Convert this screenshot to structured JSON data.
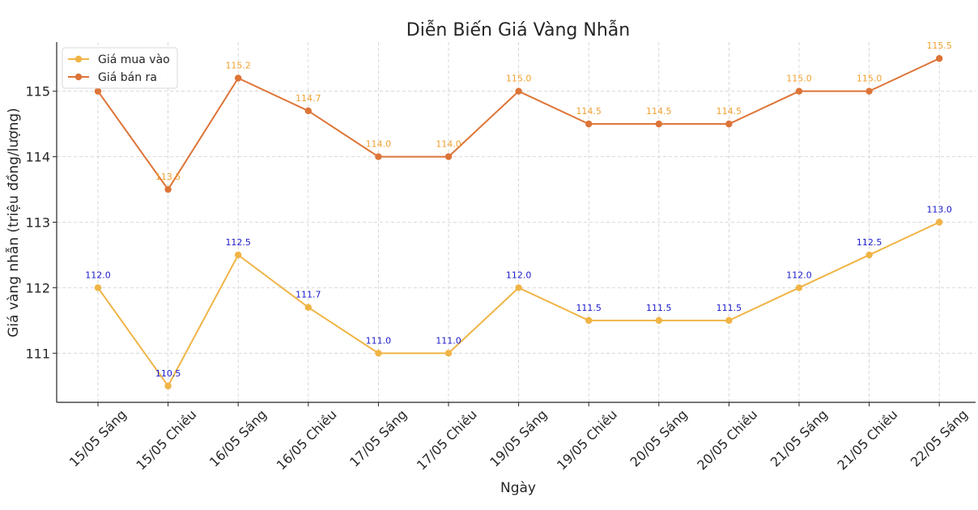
{
  "chart_data": {
    "type": "line",
    "title": "Diễn Biến Giá Vàng Nhẫn",
    "xlabel": "Ngày",
    "ylabel": "Giá vàng nhẫn (triệu đồng/lượng)",
    "categories": [
      "15/05 Sáng",
      "15/05 Chiều",
      "16/05 Sáng",
      "16/05 Chiều",
      "17/05 Sáng",
      "17/05 Chiều",
      "19/05 Sáng",
      "19/05 Chiều",
      "20/05 Sáng",
      "20/05 Chiều",
      "21/05 Sáng",
      "21/05 Chiều",
      "22/05 Sáng"
    ],
    "series": [
      {
        "name": "Giá mua vào",
        "values": [
          112.0,
          110.5,
          112.5,
          111.7,
          111.0,
          111.0,
          112.0,
          111.5,
          111.5,
          111.5,
          112.0,
          112.5,
          113.0
        ],
        "labels": [
          "112.0",
          "110.5",
          "112.5",
          "111.7",
          "111.0",
          "111.0",
          "112.0",
          "111.5",
          "111.5",
          "111.5",
          "112.0",
          "112.5",
          "113.0"
        ],
        "color": "#f0b445",
        "label_color": "#1a1acc"
      },
      {
        "name": "Giá bán ra",
        "values": [
          115.0,
          113.5,
          115.2,
          114.7,
          114.0,
          114.0,
          115.0,
          114.5,
          114.5,
          114.5,
          115.0,
          115.0,
          115.5
        ],
        "labels": [
          "",
          "113.5",
          "115.2",
          "114.7",
          "114.0",
          "114.0",
          "115.0",
          "114.5",
          "114.5",
          "114.5",
          "115.0",
          "115.0",
          "115.5"
        ],
        "color": "#dd7437",
        "label_color": "#f0a030"
      }
    ],
    "ylim": [
      110.25,
      115.75
    ],
    "yticks": [
      111,
      112,
      113,
      114,
      115
    ],
    "ytick_labels": [
      "111",
      "112",
      "113",
      "114",
      "115"
    ],
    "grid": true,
    "legend": "top-left"
  }
}
